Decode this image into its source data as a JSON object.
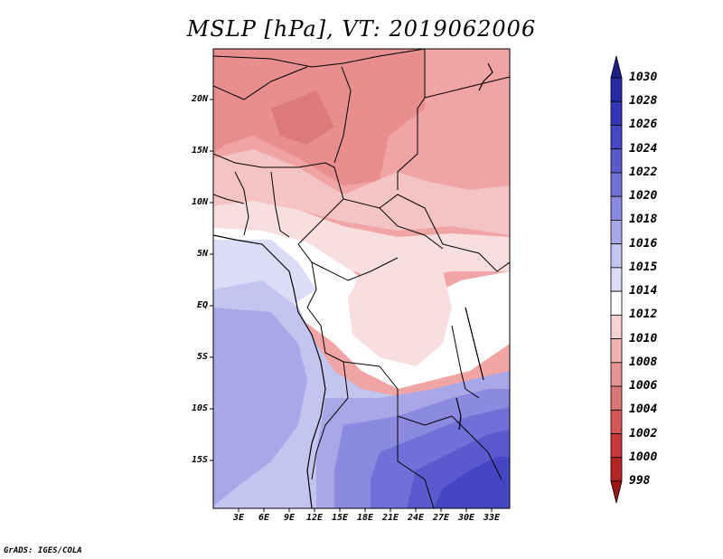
{
  "title": "MSLP [hPa], VT: 2019062006",
  "credit": "GrADS: IGES/COLA",
  "map": {
    "variable": "MSLP",
    "units": "hPa",
    "valid_time": "2019062006",
    "lat_labels": [
      "20N",
      "15N",
      "10N",
      "5N",
      "EQ",
      "5S",
      "10S",
      "15S"
    ],
    "lon_labels": [
      "3E",
      "6E",
      "9E",
      "12E",
      "15E",
      "18E",
      "21E",
      "24E",
      "27E",
      "30E",
      "33E"
    ]
  },
  "colorbar": {
    "levels": [
      "1030",
      "1028",
      "1026",
      "1024",
      "1022",
      "1020",
      "1018",
      "1016",
      "1015",
      "1014",
      "1012",
      "1010",
      "1008",
      "1006",
      "1004",
      "1002",
      "1000",
      "998"
    ],
    "colors": [
      "#1e1e8c",
      "#2828a8",
      "#3434b8",
      "#4646c4",
      "#5a5ace",
      "#7070d8",
      "#8a8ae0",
      "#a8a8e8",
      "#c4c4f0",
      "#dcdcf7",
      "#ffffff",
      "#f6d2d2",
      "#f0b4b4",
      "#e89494",
      "#dc7676",
      "#d45656",
      "#c83a3a",
      "#b42424",
      "#9e1414"
    ]
  }
}
